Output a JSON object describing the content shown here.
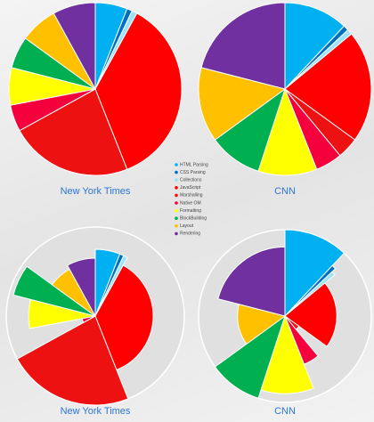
{
  "chart_data": [
    {
      "type": "pie",
      "title": "New York Times",
      "categories": [
        "HTML Parsing",
        "CSS Parsing",
        "Collections",
        "JavaScript",
        "Marshalling",
        "Native OM",
        "Formatting",
        "BlockBuilding",
        "Layout",
        "Rendering"
      ],
      "values": [
        6,
        1,
        1,
        36,
        23,
        5,
        7,
        6,
        7,
        8
      ],
      "colors": [
        "#00b0f0",
        "#0070c0",
        "#9be3f7",
        "#ff0000",
        "#ee1111",
        "#f5003c",
        "#ffff00",
        "#00b050",
        "#ffc000",
        "#7030a0"
      ]
    },
    {
      "type": "pie",
      "title": "CNN",
      "categories": [
        "HTML Parsing",
        "CSS Parsing",
        "Collections",
        "JavaScript",
        "Marshalling",
        "Native OM",
        "Formatting",
        "BlockBuilding",
        "Layout",
        "Rendering"
      ],
      "values": [
        12,
        1,
        1,
        21,
        4,
        5,
        11,
        10,
        14,
        21
      ],
      "colors": [
        "#00b0f0",
        "#0070c0",
        "#9be3f7",
        "#ff0000",
        "#ee1111",
        "#f5003c",
        "#ffff00",
        "#00b050",
        "#ffc000",
        "#7030a0"
      ]
    },
    {
      "type": "pie",
      "title": "New York Times",
      "categories": [
        "HTML Parsing",
        "CSS Parsing",
        "Collections",
        "JavaScript",
        "Marshalling",
        "Native OM",
        "Formatting",
        "BlockBuilding",
        "Layout",
        "Rendering"
      ],
      "values": [
        6,
        1,
        1,
        36,
        23,
        5,
        7,
        6,
        7,
        8
      ],
      "radii": [
        75,
        75,
        75,
        65,
        100,
        15,
        75,
        95,
        60,
        65
      ],
      "colors": [
        "#00b0f0",
        "#0070c0",
        "#9be3f7",
        "#ff0000",
        "#ee1111",
        "#f5003c",
        "#ffff00",
        "#00b050",
        "#ffc000",
        "#7030a0"
      ]
    },
    {
      "type": "pie",
      "title": "CNN",
      "categories": [
        "HTML Parsing",
        "CSS Parsing",
        "Collections",
        "JavaScript",
        "Marshalling",
        "Native OM",
        "Formatting",
        "BlockBuilding",
        "Layout",
        "Rendering"
      ],
      "values": [
        12,
        1,
        1,
        21,
        4,
        5,
        11,
        10,
        14,
        21
      ],
      "radii": [
        100,
        80,
        75,
        60,
        20,
        60,
        90,
        100,
        55,
        80
      ],
      "colors": [
        "#00b0f0",
        "#0070c0",
        "#9be3f7",
        "#ff0000",
        "#ee1111",
        "#f5003c",
        "#ffff00",
        "#00b050",
        "#ffc000",
        "#7030a0"
      ]
    }
  ]
}
